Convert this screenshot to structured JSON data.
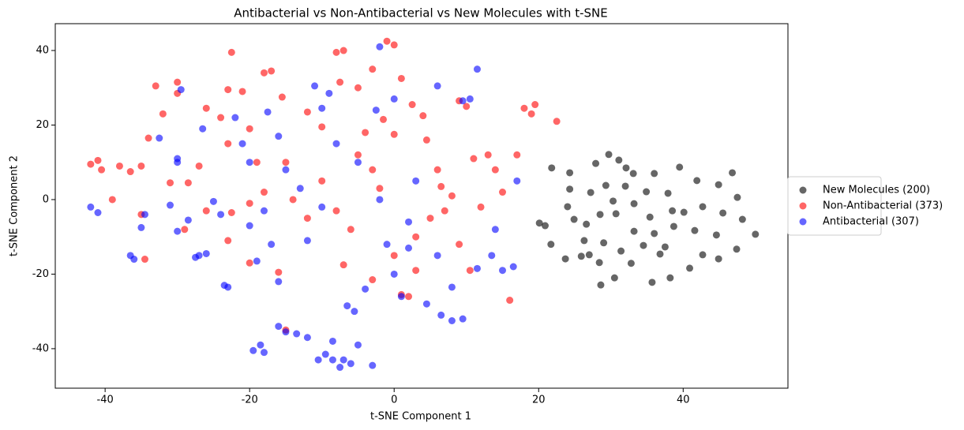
{
  "chart_data": {
    "type": "scatter",
    "title": "Antibacterial vs Non-Antibacterial vs New Molecules with t-SNE",
    "x_label": "t-SNE Component 1",
    "y_label": "t-SNE Component 2",
    "xlim": [
      -46.9,
      54.5
    ],
    "ylim": [
      -50.6,
      47.2
    ],
    "xticks": [
      -40,
      -20,
      0,
      20,
      40
    ],
    "yticks": [
      -40,
      -20,
      0,
      20,
      40
    ],
    "grid": false,
    "legend": "right",
    "alpha": 0.6,
    "series": [
      {
        "name": "New Molecules (200)",
        "color": "#000000",
        "x": [
          21.8,
          24.3,
          24.3,
          27.9,
          29.7,
          31.1,
          32.1,
          33.1,
          36,
          39.5,
          46.8,
          50,
          47.5,
          44.9,
          41.9,
          37.9,
          34.9,
          32,
          29.3,
          27.2,
          24,
          20.1,
          20.9,
          21.7,
          23.7,
          25.9,
          28.4,
          28.6,
          30.5,
          32.8,
          35.7,
          38.2,
          40.9,
          42.7,
          44.9,
          47.4,
          44.6,
          41.6,
          38.7,
          36,
          33.2,
          30.7,
          28.5,
          26.6,
          24.9,
          26.3,
          29,
          31.4,
          34.5,
          37.5,
          40.1,
          42.7,
          45.5,
          48.2,
          35.4,
          38.5,
          33.2,
          30.3,
          36.8,
          27
        ],
        "y": [
          8.5,
          7.2,
          2.8,
          9.7,
          12.1,
          10.6,
          8.5,
          7,
          7,
          8.7,
          7.2,
          -9.3,
          0.6,
          4,
          5.1,
          1.7,
          2.1,
          3.6,
          3.8,
          1.9,
          -1.9,
          -6.3,
          -7,
          -12,
          -15.9,
          -15.2,
          -16.9,
          -22.9,
          -21,
          -17.1,
          -22.2,
          -21,
          -18.4,
          -14.8,
          -15.9,
          -13.3,
          -9.5,
          -8.3,
          -7.2,
          -9.1,
          -8.5,
          -3.8,
          -4,
          -6.6,
          -5.3,
          -11,
          -11.6,
          -13.8,
          -12.3,
          -12.7,
          -3.4,
          -1.9,
          -3.6,
          -5.3,
          -4.7,
          -3,
          -1.1,
          -0.4,
          -14.6,
          -14.8
        ]
      },
      {
        "name": "Non-Antibacterial (373)",
        "color": "#ff0000",
        "x": [
          -42,
          -41,
          -40.5,
          -38,
          -36.5,
          -35,
          -39,
          -35,
          -34.5,
          -33,
          -32,
          -30,
          -30,
          -28.5,
          -31,
          -34,
          -26,
          -26,
          -23,
          -22.5,
          -21,
          -23,
          -20,
          -23,
          -20,
          -19,
          -17,
          -18,
          -15.5,
          -16,
          -15,
          -12,
          -10,
          -8,
          -7.5,
          -7,
          -5,
          -6,
          -3,
          -1,
          0,
          -1.5,
          0,
          1,
          2.5,
          4,
          4.5,
          3,
          1,
          2,
          -3,
          -7,
          6,
          6.5,
          7,
          8,
          9,
          10,
          11,
          12,
          13,
          14,
          15,
          16,
          17,
          18,
          19,
          19.5,
          22.5,
          -10,
          -5,
          -2,
          3,
          -12,
          -15,
          -8,
          5,
          -3,
          10.5,
          -22.5,
          -18,
          -14,
          0,
          9,
          -4,
          -27,
          -29,
          -20,
          -24
        ],
        "y": [
          9.5,
          10.5,
          8,
          9,
          7.5,
          9,
          0,
          -4,
          -16,
          30.5,
          23,
          31.5,
          28.5,
          4.5,
          4.5,
          16.5,
          24.5,
          -3,
          29.5,
          39.5,
          29,
          15,
          19,
          -11,
          -17,
          10,
          34.5,
          34,
          27.5,
          -19.5,
          -35,
          23.5,
          19.5,
          39.5,
          31.5,
          40,
          30,
          -8,
          35,
          42.5,
          41.5,
          21.5,
          17.5,
          32.5,
          25.5,
          22.5,
          16,
          -19,
          -25.5,
          -26,
          -21.5,
          -17.5,
          8,
          3.5,
          -3,
          1,
          26.5,
          25,
          11,
          -2,
          12,
          8,
          2,
          -27,
          12,
          24.5,
          23,
          25.5,
          21,
          5,
          12,
          3,
          -10,
          -5,
          10,
          -3,
          -5,
          8,
          -19,
          -3.5,
          2,
          0,
          -15,
          -12,
          18,
          9,
          -8,
          -1,
          22
        ]
      },
      {
        "name": "Antibacterial (307)",
        "color": "#0000ff",
        "x": [
          -42,
          -41,
          -36.5,
          -36,
          -35,
          -34.5,
          -31,
          -32.5,
          -30,
          -29.5,
          -30,
          -30,
          -28.5,
          -27.5,
          -27,
          -26,
          -26.5,
          -25,
          -24,
          -23.5,
          -23,
          -22,
          -21,
          -20,
          -19,
          -19.5,
          -18.5,
          -18,
          -17.5,
          -17,
          -16,
          -16,
          -15,
          -13.5,
          -12,
          -11,
          -10.5,
          -10,
          -9.5,
          -9,
          -8.5,
          -8.5,
          -7.5,
          -7,
          -6,
          -5,
          -6.5,
          -5.5,
          -3,
          -2.5,
          -2,
          0,
          -1,
          1,
          2,
          4.5,
          6,
          6.5,
          8,
          8,
          9.5,
          9.5,
          10.5,
          11.5,
          13.5,
          14,
          15,
          16.5,
          17,
          11.5,
          -13,
          -10,
          -5,
          -15,
          -18,
          -2,
          3,
          -8,
          -12,
          0,
          -4,
          -20,
          -16,
          6,
          2
        ],
        "y": [
          -2,
          -3.5,
          -15,
          -16,
          -7.5,
          -4,
          -1.5,
          16.5,
          -8.5,
          29.5,
          11,
          10,
          -5.5,
          -15.5,
          -15,
          -14.5,
          19,
          -0.5,
          -4,
          -23,
          -23.5,
          22,
          15,
          -7,
          -16.5,
          -40.5,
          -39,
          -41,
          23.5,
          -12,
          -22,
          -34,
          -35.5,
          -36,
          -37,
          30.5,
          -43,
          24.5,
          -41.5,
          28.5,
          -38,
          -43,
          -45,
          -43,
          -44,
          -39,
          -28.5,
          -30,
          -44.5,
          24,
          41,
          27,
          -12,
          -26,
          -6,
          -28,
          30.5,
          -31,
          -23.5,
          -32.5,
          -32,
          26.5,
          27,
          35,
          -15,
          -8,
          -19,
          -18,
          5,
          -18.5,
          3,
          -2,
          10,
          8,
          -3,
          0,
          5,
          15,
          -11,
          -20,
          -24,
          10,
          17,
          -15,
          -13
        ]
      }
    ]
  }
}
